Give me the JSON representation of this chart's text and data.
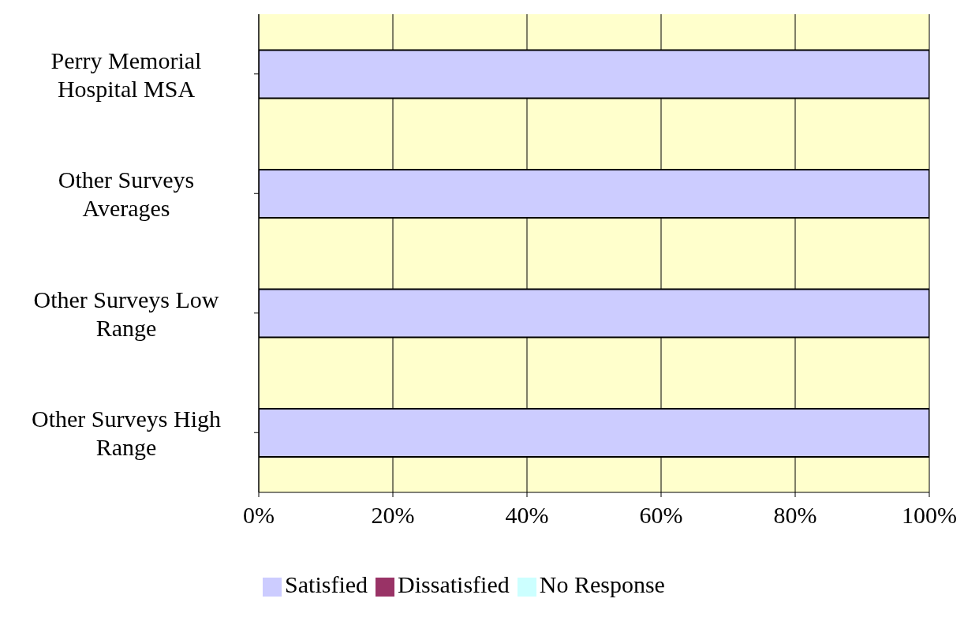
{
  "chart_data": {
    "type": "bar",
    "orientation": "horizontal",
    "stacked": true,
    "categories": [
      "Perry Memorial Hospital MSA",
      "Other Surveys Averages",
      "Other Surveys Low Range",
      "Other Surveys High Range"
    ],
    "series": [
      {
        "name": "Satisfied",
        "color": "#ccccff",
        "values": [
          100,
          100,
          100,
          100
        ]
      },
      {
        "name": "Dissatisfied",
        "color": "#993366",
        "values": [
          0,
          0,
          0,
          0
        ]
      },
      {
        "name": "No Response",
        "color": "#ccffff",
        "values": [
          0,
          0,
          0,
          0
        ]
      }
    ],
    "xlim": [
      0,
      100
    ],
    "xticks": [
      {
        "value": 0,
        "label": "0%"
      },
      {
        "value": 20,
        "label": "20%"
      },
      {
        "value": 40,
        "label": "40%"
      },
      {
        "value": 60,
        "label": "60%"
      },
      {
        "value": 80,
        "label": "80%"
      },
      {
        "value": 100,
        "label": "100%"
      }
    ],
    "grid": "x",
    "legend": "bottom"
  }
}
